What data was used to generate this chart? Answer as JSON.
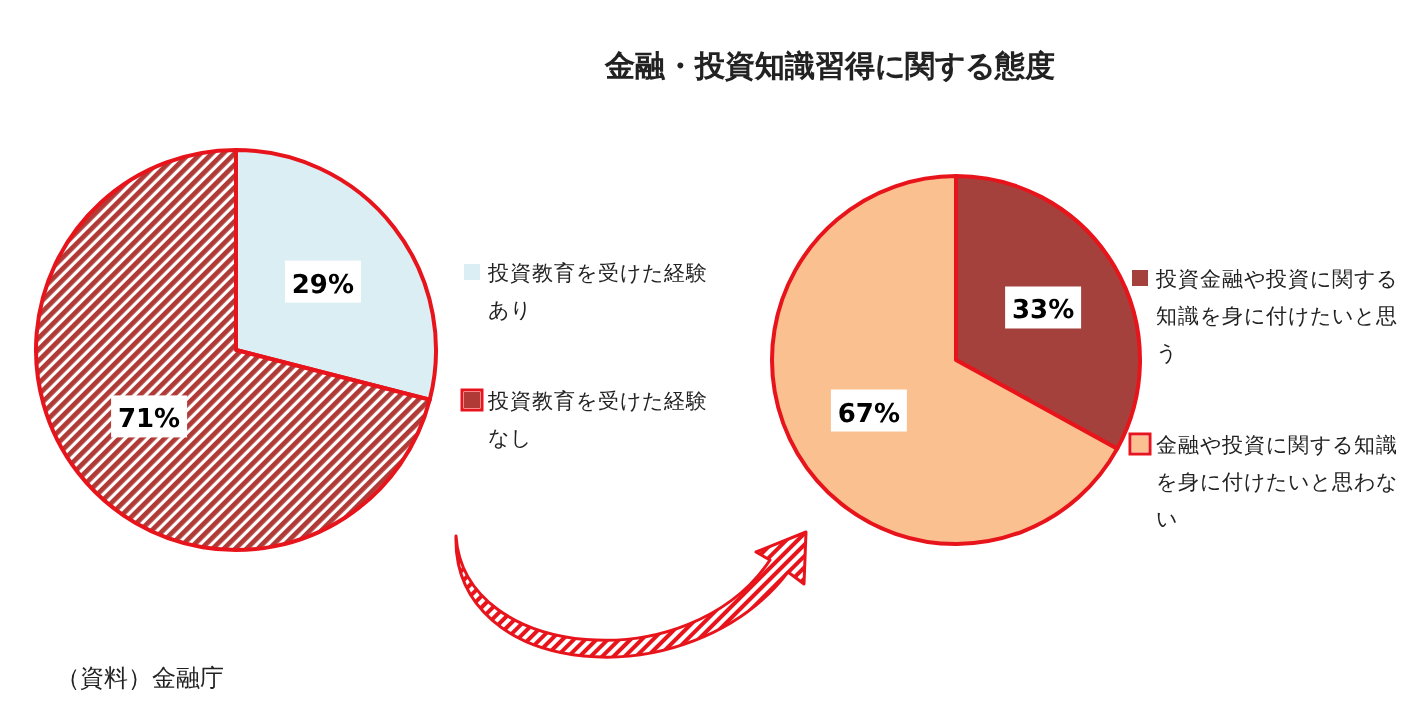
{
  "chart_data": [
    {
      "type": "pie",
      "categories": [
        "投資教育を受けた経験あり",
        "投資教育を受けた経験なし"
      ],
      "values": [
        29,
        71
      ],
      "value_labels": [
        "29%",
        "71%"
      ],
      "colors": [
        "#dbeef4",
        "#b03a36"
      ],
      "legend": "right",
      "annotations": [
        "（資料）金融庁"
      ]
    },
    {
      "type": "pie",
      "title": "金融・投資知識習得に関する態度",
      "categories": [
        "投資金融や投資に関する知識を身に付けたいと思う",
        "金融や投資に関する知識を身に付けたいと思わない"
      ],
      "values": [
        33,
        67
      ],
      "value_labels": [
        "33%",
        "67%"
      ],
      "colors": [
        "#a5413c",
        "#fac090"
      ],
      "legend": "right"
    }
  ]
}
